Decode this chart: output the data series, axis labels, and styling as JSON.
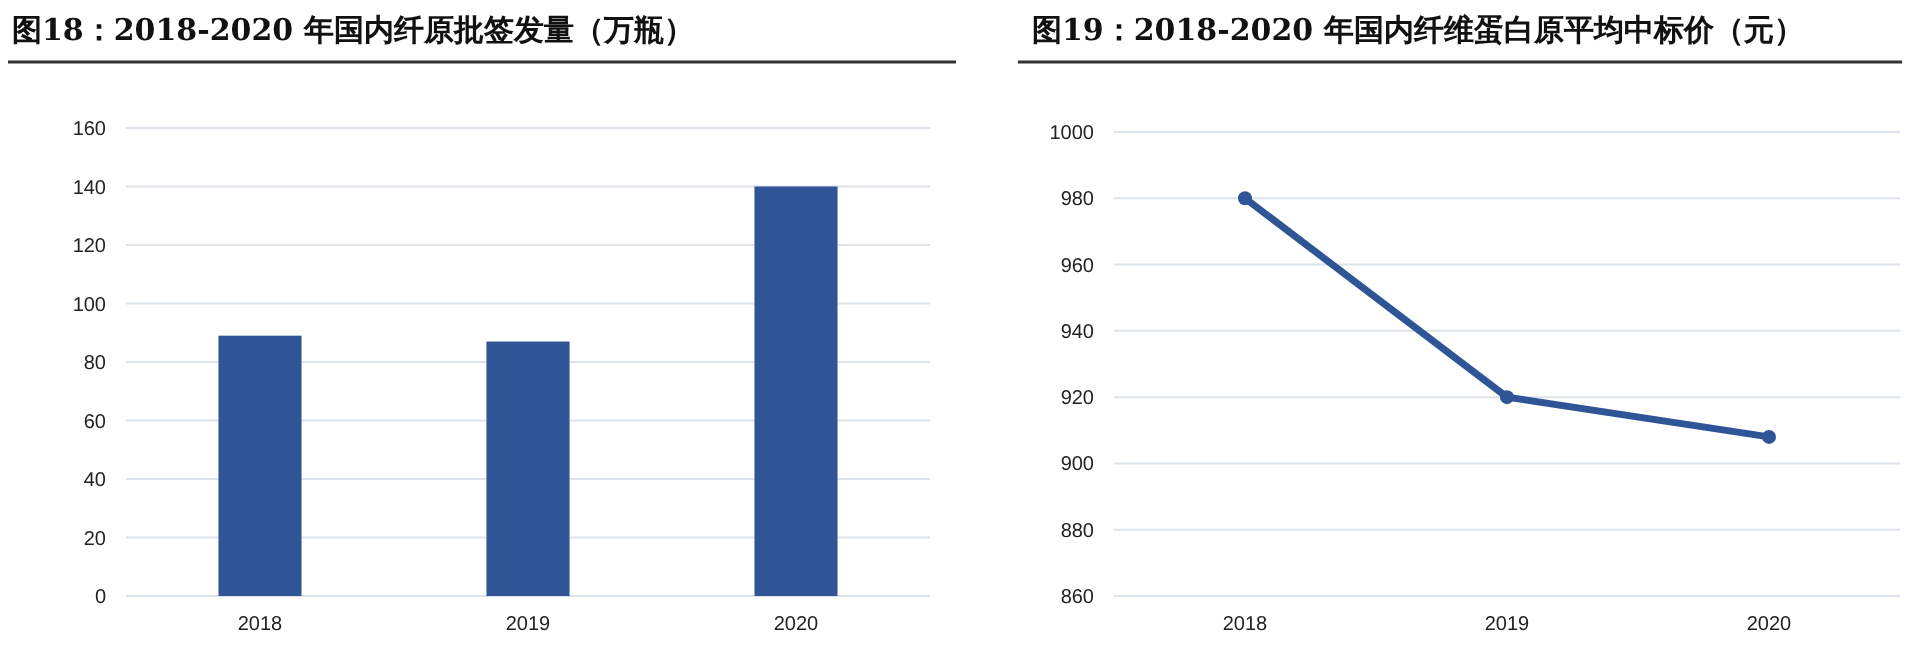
{
  "chart_data": [
    {
      "type": "bar",
      "title": "图18：2018-2020 年国内纤原批签发量（万瓶）",
      "categories": [
        "2018",
        "2019",
        "2020"
      ],
      "values": [
        89,
        87,
        140
      ],
      "color": "#2f5597",
      "ylim": [
        0,
        160
      ],
      "yticks": [
        0,
        20,
        40,
        60,
        80,
        100,
        120,
        140,
        160
      ],
      "grid": "y"
    },
    {
      "type": "line",
      "title": "图19：2018-2020 年国内纤维蛋白原平均中标价（元）",
      "categories": [
        "2018",
        "2019",
        "2020"
      ],
      "values": [
        980,
        920,
        908
      ],
      "color": "#2f5597",
      "ylim": [
        860,
        1000
      ],
      "yticks": [
        860,
        880,
        900,
        920,
        940,
        960,
        980,
        1000
      ],
      "grid": "y",
      "marker": "circle"
    }
  ]
}
